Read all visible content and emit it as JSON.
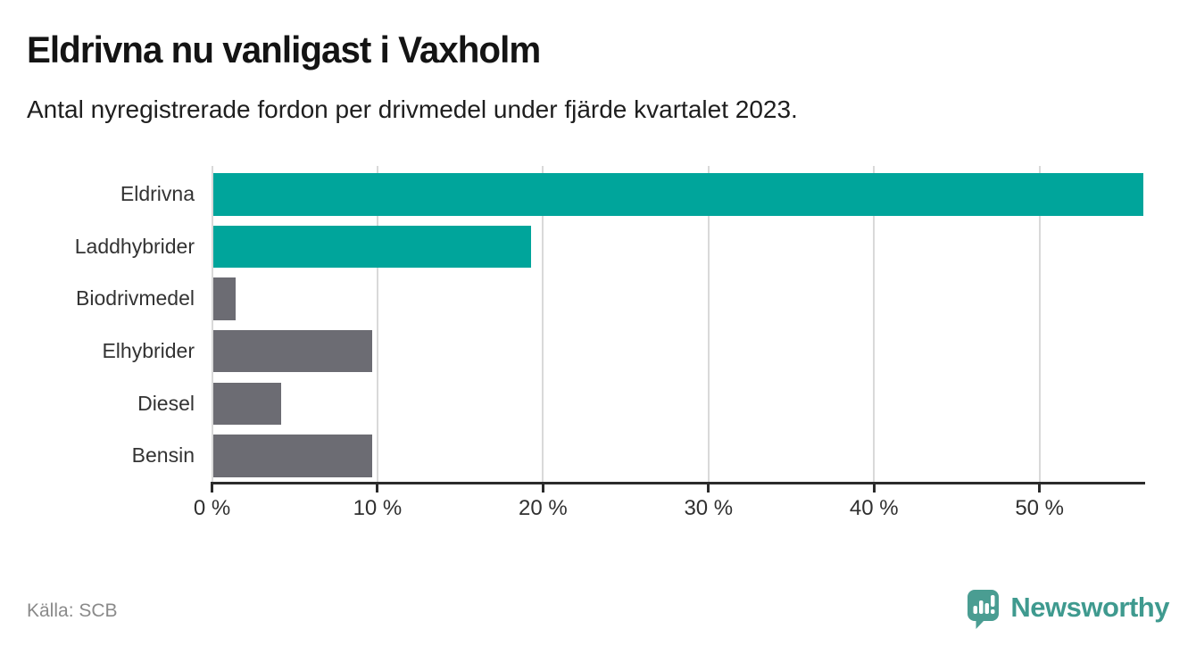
{
  "header": {
    "title": "Eldrivna nu vanligast i Vaxholm",
    "subtitle": "Antal nyregistrerade fordon per drivmedel under fjärde kvartalet 2023."
  },
  "chart_data": {
    "type": "bar",
    "orientation": "horizontal",
    "title": "Eldrivna nu vanligast i Vaxholm",
    "subtitle": "Antal nyregistrerade fordon per drivmedel under fjärde kvartalet 2023.",
    "categories": [
      "Eldrivna",
      "Laddhybrider",
      "Biodrivmedel",
      "Elhybrider",
      "Diesel",
      "Bensin"
    ],
    "values": [
      56.2,
      19.2,
      1.4,
      9.6,
      4.1,
      9.6
    ],
    "unit": "%",
    "bar_colors": [
      "#00a59b",
      "#00a59b",
      "#6c6c73",
      "#6c6c73",
      "#6c6c73",
      "#6c6c73"
    ],
    "x_tick_labels": [
      "0 %",
      "10 %",
      "20 %",
      "30 %",
      "40 %",
      "50 %"
    ],
    "x_tick_values": [
      0,
      10,
      20,
      30,
      40,
      50
    ],
    "xlim": [
      0,
      56.3
    ],
    "grid": "vertical-light-gray",
    "legend": "none"
  },
  "footer": {
    "source": "Källa: SCB",
    "brand": "Newsworthy"
  },
  "colors": {
    "accent_teal": "#00a59b",
    "neutral_gray": "#6c6c73",
    "gridline": "#d9d9d9",
    "axis": "#2b2b2b",
    "logo_teal": "#3f9a8f"
  }
}
